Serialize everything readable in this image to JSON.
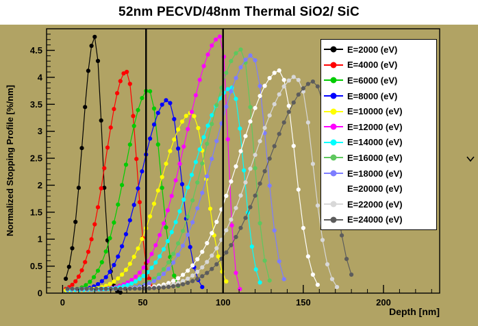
{
  "title": "52nm PECVD/48nm Thermal SiO2/ SiC",
  "axes": {
    "x_label": "Depth [nm]",
    "y_label": "Normalized Stopping Profile [%/nm]",
    "x_range": [
      -10,
      235
    ],
    "y_range": [
      0,
      4.9
    ],
    "x_major_ticks": [
      0,
      50,
      100,
      150,
      200
    ],
    "x_minor_step": 10,
    "y_major_step": 0.5,
    "y_minor_step": 0.1
  },
  "colors": {
    "canvas_bg": "#b1a364",
    "title_bg": "#ffffff",
    "legend_bg": "#ffffff",
    "axis": "#000000",
    "boundary_line": "#000000"
  },
  "side_icon": {
    "name": "chevron-down-icon"
  },
  "chart_data": {
    "type": "line",
    "title": "52nm PECVD/48nm Thermal SiO2/ SiC",
    "xlabel": "Depth [nm]",
    "ylabel": "Normalized Stopping Profile [%/nm]",
    "xlim": [
      -10,
      235
    ],
    "ylim": [
      0,
      4.9
    ],
    "grid": false,
    "legend_position": "top-right",
    "marker": "filled-circle",
    "layer_boundaries_nm": [
      52,
      100
    ],
    "profile_model": "split_gaussian_plus_pedestal",
    "series": [
      {
        "label": "E=2000 (eV)",
        "energy_eV": 2000,
        "color": "#000000",
        "peak_depth_nm": 20,
        "peak_height": 4.75,
        "width_left_nm": 7.5,
        "width_right_nm": 4.5,
        "pedestal": 0,
        "x_start": 2,
        "x_end": 36,
        "x_step": 2
      },
      {
        "label": "E=4000 (eV)",
        "energy_eV": 4000,
        "color": "#ff0000",
        "peak_depth_nm": 40,
        "peak_height": 4.1,
        "width_left_nm": 13,
        "width_right_nm": 6,
        "pedestal": 0.02,
        "x_start": 2,
        "x_end": 57,
        "x_step": 2
      },
      {
        "label": "E=6000 (eV)",
        "energy_eV": 6000,
        "color": "#00cc00",
        "peak_depth_nm": 54,
        "peak_height": 3.75,
        "width_left_nm": 15,
        "width_right_nm": 7,
        "pedestal": 0.03,
        "x_start": 2,
        "x_end": 74,
        "x_step": 2.5
      },
      {
        "label": "E=8000 (eV)",
        "energy_eV": 8000,
        "color": "#0000ff",
        "peak_depth_nm": 66,
        "peak_height": 3.55,
        "width_left_nm": 17,
        "width_right_nm": 8,
        "pedestal": 0.04,
        "x_start": 2,
        "x_end": 88,
        "x_step": 2.5
      },
      {
        "label": "E=10000 (eV)",
        "energy_eV": 10000,
        "color": "#ffff00",
        "peak_depth_nm": 81,
        "peak_height": 3.3,
        "width_left_nm": 20,
        "width_right_nm": 9,
        "pedestal": 0.05,
        "x_start": 2,
        "x_end": 104,
        "x_step": 2.5
      },
      {
        "label": "E=12000 (eV)",
        "energy_eV": 12000,
        "color": "#ff00ff",
        "peak_depth_nm": 99,
        "peak_height": 4.7,
        "width_left_nm": 22,
        "width_right_nm": 4,
        "pedestal": 0.06,
        "x_start": 3,
        "x_end": 112,
        "x_step": 2.5
      },
      {
        "label": "E=14000 (eV)",
        "energy_eV": 14000,
        "color": "#00ffff",
        "peak_depth_nm": 106,
        "peak_height": 3.75,
        "width_left_nm": 24,
        "width_right_nm": 7,
        "pedestal": 0.06,
        "x_start": 3,
        "x_end": 124,
        "x_step": 2.5
      },
      {
        "label": "E=16000 (eV)",
        "energy_eV": 16000,
        "color": "#5ec75e",
        "peak_depth_nm": 112,
        "peak_height": 4.45,
        "width_left_nm": 22,
        "width_right_nm": 7,
        "pedestal": 0.07,
        "x_start": 3,
        "x_end": 130,
        "x_step": 3
      },
      {
        "label": "E=18000 (eV)",
        "energy_eV": 18000,
        "color": "#7d7dff",
        "peak_depth_nm": 119,
        "peak_height": 4.35,
        "width_left_nm": 24,
        "width_right_nm": 8,
        "pedestal": 0.07,
        "x_start": 3,
        "x_end": 140,
        "x_step": 3
      },
      {
        "label": "E=20000 (eV)",
        "energy_eV": 20000,
        "color": "#ffffff",
        "peak_depth_nm": 136,
        "peak_height": 4.05,
        "width_left_nm": 26,
        "width_right_nm": 9,
        "pedestal": 0.08,
        "x_start": 3,
        "x_end": 160,
        "x_step": 3
      },
      {
        "label": "E=22000 (eV)",
        "energy_eV": 22000,
        "color": "#d8d8d8",
        "peak_depth_nm": 147,
        "peak_height": 3.95,
        "width_left_nm": 28,
        "width_right_nm": 9,
        "pedestal": 0.08,
        "x_start": 3,
        "x_end": 172,
        "x_step": 3
      },
      {
        "label": "E=24000 (eV)",
        "energy_eV": 24000,
        "color": "#5c5c5c",
        "peak_depth_nm": 158,
        "peak_height": 3.85,
        "width_left_nm": 30,
        "width_right_nm": 10,
        "pedestal": 0.08,
        "x_start": 3,
        "x_end": 182,
        "x_step": 3
      }
    ]
  }
}
